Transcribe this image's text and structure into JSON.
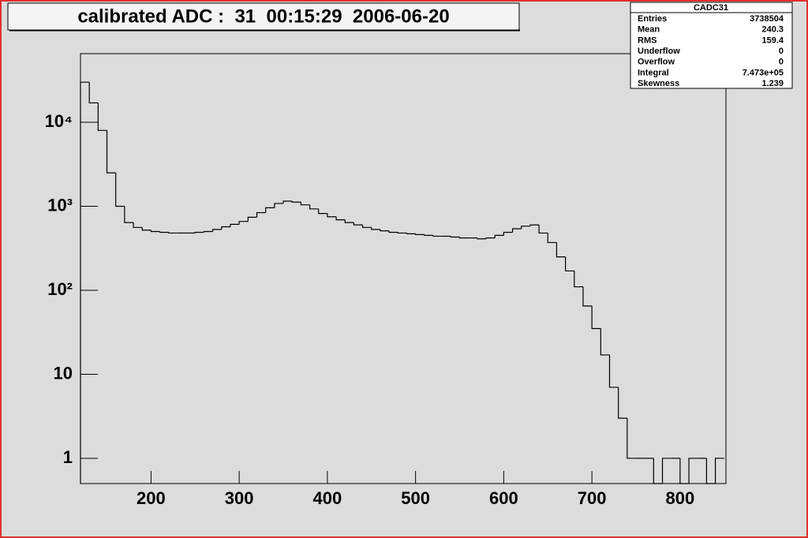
{
  "chart_data": {
    "type": "histogram",
    "title": "calibrated ADC :  31  00:15:29  2006-06-20",
    "log_y": true,
    "color": "#000000",
    "bins": [
      120,
      130,
      140,
      150,
      160,
      170,
      180,
      190,
      200,
      210,
      220,
      230,
      240,
      250,
      260,
      270,
      280,
      290,
      300,
      310,
      320,
      330,
      340,
      350,
      360,
      370,
      380,
      390,
      400,
      410,
      420,
      430,
      440,
      450,
      460,
      470,
      480,
      490,
      500,
      510,
      520,
      530,
      540,
      550,
      560,
      570,
      580,
      590,
      600,
      610,
      620,
      630,
      640,
      650,
      660,
      670,
      680,
      690,
      700,
      710,
      720,
      730,
      740,
      750,
      760,
      770,
      780,
      790,
      800,
      810,
      820,
      830,
      840,
      850
    ],
    "values": [
      30000,
      17000,
      8000,
      2500,
      1000,
      640,
      560,
      520,
      500,
      490,
      480,
      480,
      480,
      490,
      500,
      530,
      570,
      610,
      660,
      740,
      840,
      960,
      1080,
      1150,
      1120,
      1040,
      930,
      820,
      750,
      690,
      640,
      600,
      560,
      530,
      510,
      490,
      480,
      470,
      460,
      450,
      440,
      440,
      430,
      420,
      420,
      410,
      420,
      450,
      490,
      540,
      580,
      600,
      480,
      370,
      250,
      170,
      110,
      65,
      35,
      17,
      7,
      3,
      1,
      1,
      1,
      0,
      1,
      1,
      0,
      1,
      1,
      0,
      1
    ],
    "xlim": [
      120,
      852
    ],
    "xticks": [
      200,
      300,
      400,
      500,
      600,
      700,
      800
    ],
    "ylim": [
      0.5,
      65600
    ],
    "yticks": [
      1,
      10,
      {
        "value": 100,
        "label": "10²"
      },
      {
        "value": 1000,
        "label": "10³"
      },
      {
        "value": 10000,
        "label": "10⁴"
      }
    ],
    "stats": {
      "title": "CADC31",
      "rows": [
        {
          "label": "Entries",
          "value": "3738504"
        },
        {
          "label": "Mean",
          "value": "240.3"
        },
        {
          "label": "RMS",
          "value": "159.4"
        },
        {
          "label": "Underflow",
          "value": "0"
        },
        {
          "label": "Overflow",
          "value": "0"
        },
        {
          "label": "Integral",
          "value": "7.473e+05"
        },
        {
          "label": "Skewness",
          "value": "1.239"
        }
      ]
    }
  }
}
